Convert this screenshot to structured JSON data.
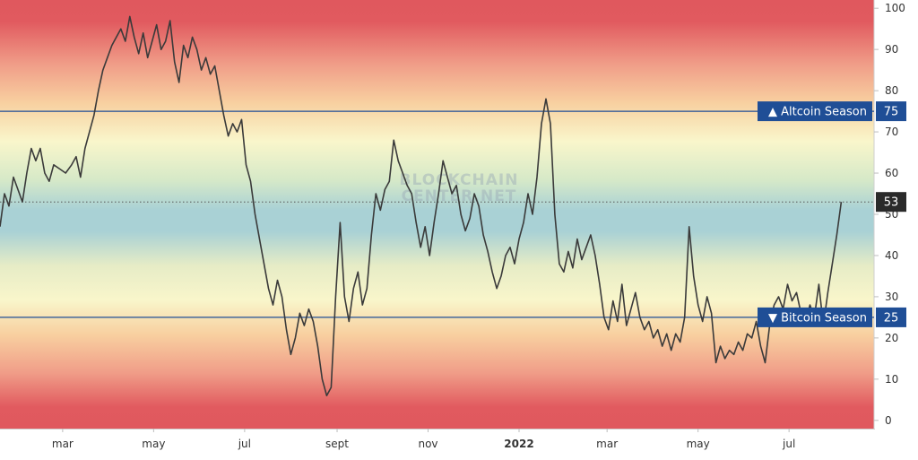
{
  "watermark": {
    "line1": "BLOCKCHAIN",
    "line2": "CENTER.NET"
  },
  "colors": {
    "line": "#3a3a3a",
    "threshold": "#1f4e96",
    "tag": "#1f4e96",
    "current_tag": "#2a2a2a",
    "red": "#e0585e",
    "orange": "#f7c898",
    "yellow": "#f9f7cb",
    "teal": "#a4cfd4"
  },
  "chart_data": {
    "type": "line",
    "title": "",
    "xlabel": "",
    "ylabel": "",
    "ylim": [
      -2,
      102
    ],
    "y_ticks": [
      0,
      10,
      20,
      30,
      40,
      50,
      60,
      70,
      80,
      90,
      100
    ],
    "x_ticks": [
      {
        "label": "mar",
        "date": "2021-03-01"
      },
      {
        "label": "may",
        "date": "2021-05-01"
      },
      {
        "label": "jul",
        "date": "2021-07-01"
      },
      {
        "label": "sept",
        "date": "2021-09-01"
      },
      {
        "label": "nov",
        "date": "2021-11-01"
      },
      {
        "label": "2022",
        "date": "2022-01-01",
        "bold": true
      },
      {
        "label": "mar",
        "date": "2022-03-01"
      },
      {
        "label": "may",
        "date": "2022-05-01"
      },
      {
        "label": "jul",
        "date": "2022-07-01"
      }
    ],
    "xlim": [
      "2021-01-18",
      "2022-08-27"
    ],
    "thresholds": [
      {
        "label": "▲ Altcoin Season",
        "value": 75
      },
      {
        "label": "▼ Bitcoin Season",
        "value": 25
      }
    ],
    "current": {
      "value": 53
    },
    "series": [
      {
        "points": [
          [
            "2021-01-18",
            47
          ],
          [
            "2021-01-21",
            55
          ],
          [
            "2021-01-24",
            52
          ],
          [
            "2021-01-27",
            59
          ],
          [
            "2021-01-30",
            56
          ],
          [
            "2021-02-02",
            53
          ],
          [
            "2021-02-05",
            60
          ],
          [
            "2021-02-08",
            66
          ],
          [
            "2021-02-11",
            63
          ],
          [
            "2021-02-14",
            66
          ],
          [
            "2021-02-17",
            60
          ],
          [
            "2021-02-20",
            58
          ],
          [
            "2021-02-23",
            62
          ],
          [
            "2021-02-27",
            61
          ],
          [
            "2021-03-03",
            60
          ],
          [
            "2021-03-07",
            62
          ],
          [
            "2021-03-10",
            64
          ],
          [
            "2021-03-13",
            59
          ],
          [
            "2021-03-16",
            66
          ],
          [
            "2021-03-19",
            70
          ],
          [
            "2021-03-22",
            74
          ],
          [
            "2021-03-25",
            80
          ],
          [
            "2021-03-28",
            85
          ],
          [
            "2021-03-31",
            88
          ],
          [
            "2021-04-03",
            91
          ],
          [
            "2021-04-06",
            93
          ],
          [
            "2021-04-09",
            95
          ],
          [
            "2021-04-12",
            92
          ],
          [
            "2021-04-15",
            98
          ],
          [
            "2021-04-18",
            93
          ],
          [
            "2021-04-21",
            89
          ],
          [
            "2021-04-24",
            94
          ],
          [
            "2021-04-27",
            88
          ],
          [
            "2021-04-30",
            92
          ],
          [
            "2021-05-03",
            96
          ],
          [
            "2021-05-06",
            90
          ],
          [
            "2021-05-09",
            92
          ],
          [
            "2021-05-12",
            97
          ],
          [
            "2021-05-15",
            87
          ],
          [
            "2021-05-18",
            82
          ],
          [
            "2021-05-21",
            91
          ],
          [
            "2021-05-24",
            88
          ],
          [
            "2021-05-27",
            93
          ],
          [
            "2021-05-30",
            90
          ],
          [
            "2021-06-02",
            85
          ],
          [
            "2021-06-05",
            88
          ],
          [
            "2021-06-08",
            84
          ],
          [
            "2021-06-11",
            86
          ],
          [
            "2021-06-14",
            80
          ],
          [
            "2021-06-17",
            74
          ],
          [
            "2021-06-20",
            69
          ],
          [
            "2021-06-23",
            72
          ],
          [
            "2021-06-26",
            70
          ],
          [
            "2021-06-29",
            73
          ],
          [
            "2021-07-02",
            62
          ],
          [
            "2021-07-05",
            58
          ],
          [
            "2021-07-08",
            50
          ],
          [
            "2021-07-11",
            44
          ],
          [
            "2021-07-14",
            38
          ],
          [
            "2021-07-17",
            32
          ],
          [
            "2021-07-20",
            28
          ],
          [
            "2021-07-23",
            34
          ],
          [
            "2021-07-26",
            30
          ],
          [
            "2021-07-29",
            22
          ],
          [
            "2021-08-01",
            16
          ],
          [
            "2021-08-04",
            20
          ],
          [
            "2021-08-07",
            26
          ],
          [
            "2021-08-10",
            23
          ],
          [
            "2021-08-13",
            27
          ],
          [
            "2021-08-16",
            24
          ],
          [
            "2021-08-19",
            18
          ],
          [
            "2021-08-22",
            10
          ],
          [
            "2021-08-25",
            6
          ],
          [
            "2021-08-28",
            8
          ],
          [
            "2021-08-31",
            30
          ],
          [
            "2021-09-03",
            48
          ],
          [
            "2021-09-06",
            30
          ],
          [
            "2021-09-09",
            24
          ],
          [
            "2021-09-12",
            32
          ],
          [
            "2021-09-15",
            36
          ],
          [
            "2021-09-18",
            28
          ],
          [
            "2021-09-21",
            32
          ],
          [
            "2021-09-24",
            45
          ],
          [
            "2021-09-27",
            55
          ],
          [
            "2021-09-30",
            51
          ],
          [
            "2021-10-03",
            56
          ],
          [
            "2021-10-06",
            58
          ],
          [
            "2021-10-09",
            68
          ],
          [
            "2021-10-12",
            63
          ],
          [
            "2021-10-15",
            60
          ],
          [
            "2021-10-18",
            57
          ],
          [
            "2021-10-21",
            55
          ],
          [
            "2021-10-24",
            48
          ],
          [
            "2021-10-27",
            42
          ],
          [
            "2021-10-30",
            47
          ],
          [
            "2021-11-02",
            40
          ],
          [
            "2021-11-05",
            48
          ],
          [
            "2021-11-08",
            55
          ],
          [
            "2021-11-11",
            63
          ],
          [
            "2021-11-14",
            59
          ],
          [
            "2021-11-17",
            55
          ],
          [
            "2021-11-20",
            57
          ],
          [
            "2021-11-23",
            50
          ],
          [
            "2021-11-26",
            46
          ],
          [
            "2021-11-29",
            49
          ],
          [
            "2021-12-02",
            55
          ],
          [
            "2021-12-05",
            52
          ],
          [
            "2021-12-08",
            45
          ],
          [
            "2021-12-11",
            41
          ],
          [
            "2021-12-14",
            36
          ],
          [
            "2021-12-17",
            32
          ],
          [
            "2021-12-20",
            35
          ],
          [
            "2021-12-23",
            40
          ],
          [
            "2021-12-26",
            42
          ],
          [
            "2021-12-29",
            38
          ],
          [
            "2022-01-01",
            44
          ],
          [
            "2022-01-04",
            48
          ],
          [
            "2022-01-07",
            55
          ],
          [
            "2022-01-10",
            50
          ],
          [
            "2022-01-13",
            59
          ],
          [
            "2022-01-16",
            72
          ],
          [
            "2022-01-19",
            78
          ],
          [
            "2022-01-22",
            72
          ],
          [
            "2022-01-25",
            50
          ],
          [
            "2022-01-28",
            38
          ],
          [
            "2022-01-31",
            36
          ],
          [
            "2022-02-03",
            41
          ],
          [
            "2022-02-06",
            37
          ],
          [
            "2022-02-09",
            44
          ],
          [
            "2022-02-12",
            39
          ],
          [
            "2022-02-15",
            42
          ],
          [
            "2022-02-18",
            45
          ],
          [
            "2022-02-21",
            40
          ],
          [
            "2022-02-24",
            33
          ],
          [
            "2022-02-27",
            25
          ],
          [
            "2022-03-02",
            22
          ],
          [
            "2022-03-05",
            29
          ],
          [
            "2022-03-08",
            24
          ],
          [
            "2022-03-11",
            33
          ],
          [
            "2022-03-14",
            23
          ],
          [
            "2022-03-17",
            27
          ],
          [
            "2022-03-20",
            31
          ],
          [
            "2022-03-23",
            25
          ],
          [
            "2022-03-26",
            22
          ],
          [
            "2022-03-29",
            24
          ],
          [
            "2022-04-01",
            20
          ],
          [
            "2022-04-04",
            22
          ],
          [
            "2022-04-07",
            18
          ],
          [
            "2022-04-10",
            21
          ],
          [
            "2022-04-13",
            17
          ],
          [
            "2022-04-16",
            21
          ],
          [
            "2022-04-19",
            19
          ],
          [
            "2022-04-22",
            25
          ],
          [
            "2022-04-25",
            47
          ],
          [
            "2022-04-28",
            35
          ],
          [
            "2022-05-01",
            28
          ],
          [
            "2022-05-04",
            24
          ],
          [
            "2022-05-07",
            30
          ],
          [
            "2022-05-10",
            26
          ],
          [
            "2022-05-13",
            14
          ],
          [
            "2022-05-16",
            18
          ],
          [
            "2022-05-19",
            15
          ],
          [
            "2022-05-22",
            17
          ],
          [
            "2022-05-25",
            16
          ],
          [
            "2022-05-28",
            19
          ],
          [
            "2022-05-31",
            17
          ],
          [
            "2022-06-03",
            21
          ],
          [
            "2022-06-06",
            20
          ],
          [
            "2022-06-09",
            24
          ],
          [
            "2022-06-12",
            18
          ],
          [
            "2022-06-15",
            14
          ],
          [
            "2022-06-18",
            23
          ],
          [
            "2022-06-21",
            28
          ],
          [
            "2022-06-24",
            30
          ],
          [
            "2022-06-27",
            27
          ],
          [
            "2022-06-30",
            33
          ],
          [
            "2022-07-03",
            29
          ],
          [
            "2022-07-06",
            31
          ],
          [
            "2022-07-09",
            26
          ],
          [
            "2022-07-12",
            24
          ],
          [
            "2022-07-15",
            28
          ],
          [
            "2022-07-18",
            25
          ],
          [
            "2022-07-21",
            33
          ],
          [
            "2022-07-24",
            23
          ],
          [
            "2022-07-27",
            31
          ],
          [
            "2022-07-30",
            38
          ],
          [
            "2022-08-02",
            45
          ],
          [
            "2022-08-05",
            53
          ]
        ]
      }
    ]
  }
}
